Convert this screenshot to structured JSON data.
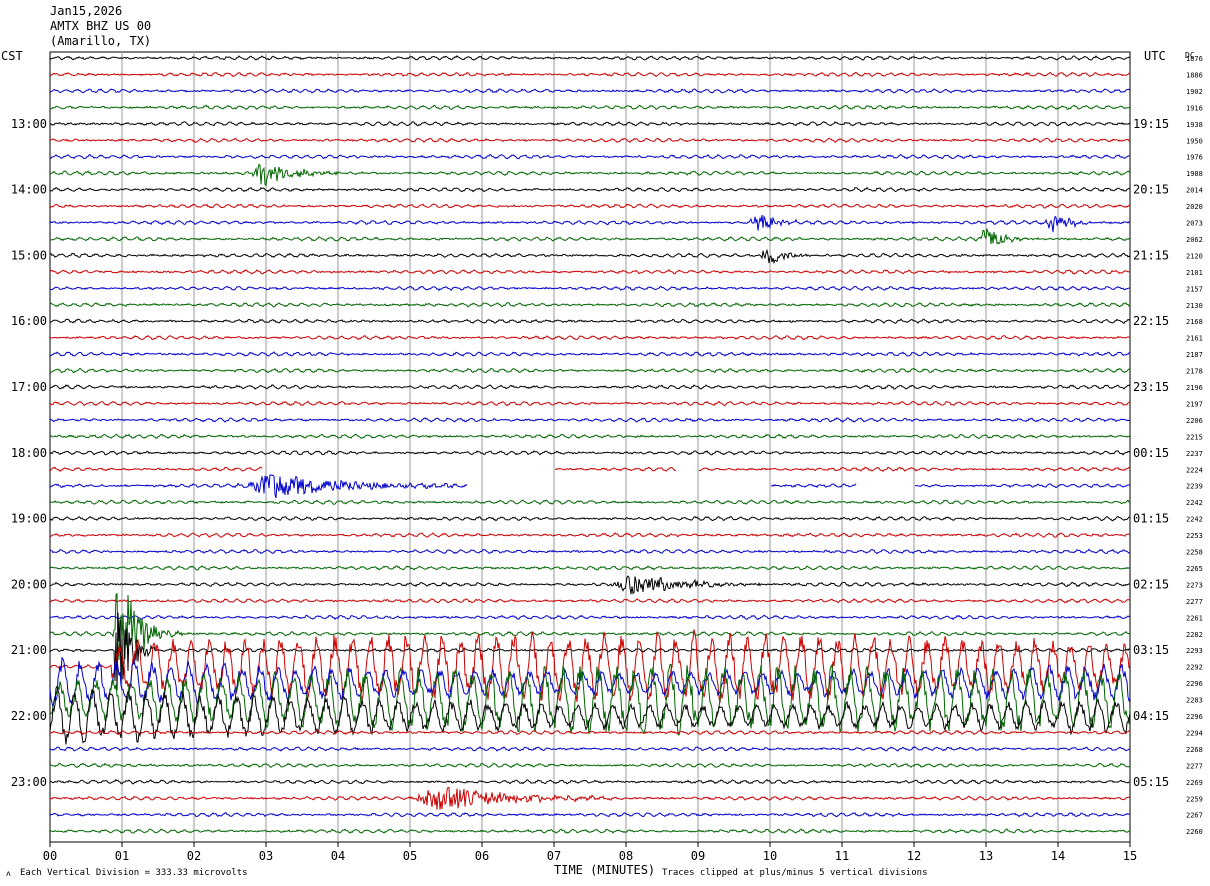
{
  "header": {
    "date": "Jan15,2026",
    "station": "AMTX BHZ US 00",
    "location": "(Amarillo, TX)",
    "left_zone": "CST",
    "right_zone": "UTC",
    "right_column_label": "DC"
  },
  "footer": {
    "vertical_division": "Each Vertical Division =  333.33 microvolts",
    "x_axis_title": "TIME (MINUTES)",
    "clip_note": "Traces clipped at plus/minus 5 vertical divisions"
  },
  "colors": {
    "black": "#000000",
    "red": "#cc0000",
    "blue": "#0000cc",
    "green": "#006600",
    "grid": "#999999"
  },
  "chart_data": {
    "type": "line",
    "title": "AMTX BHZ US 00 (Amarillo, TX) Jan15,2026",
    "xlabel": "TIME (MINUTES)",
    "xlim": [
      0,
      15
    ],
    "x_ticks": [
      "00",
      "01",
      "02",
      "03",
      "04",
      "05",
      "06",
      "07",
      "08",
      "09",
      "10",
      "11",
      "12",
      "13",
      "14",
      "15"
    ],
    "left_hour_labels": [
      "13:00",
      "14:00",
      "15:00",
      "16:00",
      "17:00",
      "18:00",
      "19:00",
      "20:00",
      "21:00",
      "22:00",
      "23:00"
    ],
    "right_hour_labels": [
      "19:15",
      "20:15",
      "21:15",
      "22:15",
      "23:15",
      "00:15",
      "01:15",
      "02:15",
      "03:15",
      "04:15",
      "05:15"
    ],
    "trace_color_cycle": [
      "black",
      "red",
      "blue",
      "green"
    ],
    "dc_offsets": [
      "1876",
      "1886",
      "1902",
      "1916",
      "1938",
      "1950",
      "1976",
      "1988",
      "2014",
      "2020",
      "2073",
      "2062",
      "2120",
      "2101",
      "2157",
      "2130",
      "2168",
      "2161",
      "2187",
      "2178",
      "2196",
      "2197",
      "2206",
      "2215",
      "2237",
      "2224",
      "2239",
      "2242",
      "2242",
      "2253",
      "2258",
      "2265",
      "2273",
      "2277",
      "2261",
      "2282",
      "2293",
      "2292",
      "2296",
      "2283",
      "2296",
      "2294",
      "2268",
      "2277",
      "2269",
      "2259",
      "2267",
      "2260"
    ],
    "events": [
      {
        "row": 7,
        "minute": 2.95,
        "amp": 1.4,
        "dur": 0.9
      },
      {
        "row": 10,
        "minute": 9.8,
        "amp": 1.2,
        "dur": 0.5
      },
      {
        "row": 10,
        "minute": 13.9,
        "amp": 1.3,
        "dur": 0.5
      },
      {
        "row": 11,
        "minute": 13.0,
        "amp": 1.3,
        "dur": 0.5
      },
      {
        "row": 12,
        "minute": 9.95,
        "amp": 1.1,
        "dur": 0.5
      },
      {
        "row": 26,
        "minute": 3.1,
        "amp": 1.3,
        "dur": 2.2
      },
      {
        "row": 32,
        "minute": 8.1,
        "amp": 1.0,
        "dur": 1.6
      },
      {
        "row": 35,
        "minute": 1.0,
        "amp": 2.8,
        "dur": 0.7
      },
      {
        "row": 45,
        "minute": 5.4,
        "amp": 1.4,
        "dur": 2.0
      }
    ],
    "gaps": [
      {
        "row": 25,
        "from": 2.95,
        "to": 7.0
      },
      {
        "row": 25,
        "from": 8.7,
        "to": 9.0
      },
      {
        "row": 26,
        "from": 5.8,
        "to": 10.0
      },
      {
        "row": 26,
        "from": 11.2,
        "to": 12.0
      }
    ],
    "teleseism": {
      "start_row": 37,
      "end_row": 40,
      "start_minute": 0.85,
      "amp": 3.2,
      "note": "Traces clipped at plus/minus 5 vertical divisions"
    }
  }
}
